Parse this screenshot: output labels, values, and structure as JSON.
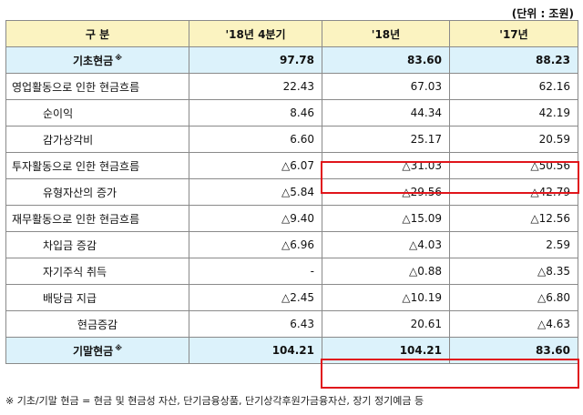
{
  "unit": "(단위 : 조원)",
  "headers": [
    "구 분",
    "'18년 4분기",
    "'18년",
    "'17년"
  ],
  "rows": {
    "begin_cash": {
      "label": "기초현금",
      "mark": "※",
      "values": [
        "97.78",
        "83.60",
        "88.23"
      ]
    },
    "operating": {
      "label": "영업활동으로 인한 현금흐름",
      "values": [
        "22.43",
        "67.03",
        "62.16"
      ]
    },
    "net_income": {
      "label": "순이익",
      "values": [
        "8.46",
        "44.34",
        "42.19"
      ]
    },
    "depreciation": {
      "label": "감가상각비",
      "values": [
        "6.60",
        "25.17",
        "20.59"
      ]
    },
    "investing": {
      "label": "투자활동으로 인한 현금흐름",
      "values": [
        "△6.07",
        "△31.03",
        "△50.56"
      ]
    },
    "tangible": {
      "label": "유형자산의 증가",
      "values": [
        "△5.84",
        "△29.56",
        "△42.79"
      ]
    },
    "financing": {
      "label": "재무활동으로 인한 현금흐름",
      "values": [
        "△9.40",
        "△15.09",
        "△12.56"
      ]
    },
    "borrowing": {
      "label": "차입금 증감",
      "values": [
        "△6.96",
        "△4.03",
        "2.59"
      ]
    },
    "treasury": {
      "label": "자기주식 취득",
      "values": [
        "-",
        "△0.88",
        "△8.35"
      ]
    },
    "dividend": {
      "label": "배당금 지급",
      "values": [
        "△2.45",
        "△10.19",
        "△6.80"
      ]
    },
    "cash_change": {
      "label": "현금증감",
      "values": [
        "6.43",
        "20.61",
        "△4.63"
      ]
    },
    "end_cash": {
      "label": "기말현금",
      "mark": "※",
      "values": [
        "104.21",
        "104.21",
        "83.60"
      ]
    }
  },
  "footnote": "※ 기초/기말 현금 = 현금 및 현금성 자산, 단기금융상품, 단기상각후원가금융자산, 장기 정기예금 등",
  "colors": {
    "header_bg": "#fbf3c1",
    "highlight_bg": "#dcf2fb",
    "red_box": "#e0151b",
    "border": "#8a8a8a"
  }
}
